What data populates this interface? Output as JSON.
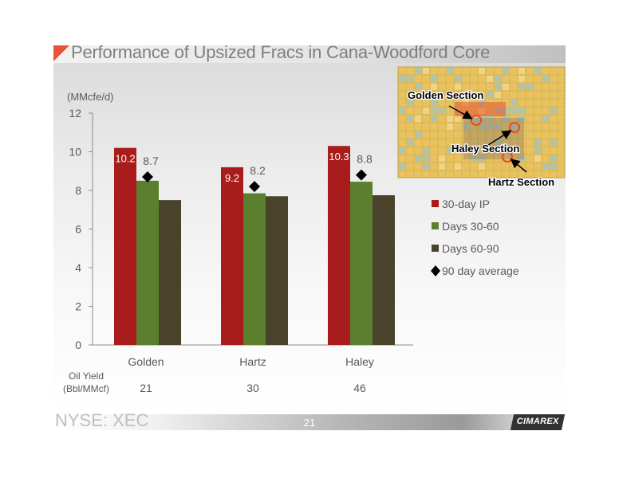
{
  "title": "Performance of Upsized Fracs in Cana-Woodford Core",
  "footer": {
    "ticker": "NYSE: XEC",
    "page_number": "21",
    "logo": "CIMAREX"
  },
  "chart_data": {
    "type": "bar",
    "unit_label": "(MMcfe/d)",
    "categories": [
      "Golden",
      "Hartz",
      "Haley"
    ],
    "ylim": [
      0,
      12
    ],
    "yticks": [
      0,
      2,
      4,
      6,
      8,
      10,
      12
    ],
    "grid": false,
    "legend_position": "right",
    "series": [
      {
        "name": "30-day IP",
        "values": [
          10.2,
          9.2,
          10.3
        ],
        "labels": [
          "10.2",
          "9.2",
          "10.3"
        ],
        "color": "#a81c1c"
      },
      {
        "name": "Days 30-60",
        "values": [
          8.5,
          7.85,
          8.45
        ],
        "labels": [
          "",
          "",
          ""
        ],
        "color": "#5b7f2e"
      },
      {
        "name": "Days 60-90",
        "values": [
          7.5,
          7.7,
          7.75
        ],
        "labels": [
          "",
          "",
          ""
        ],
        "color": "#4a432c"
      }
    ],
    "markers": {
      "name": "90 day average",
      "values": [
        8.7,
        8.2,
        8.8
      ],
      "labels": [
        "8.7",
        "8.2",
        "8.8"
      ],
      "color": "#000000"
    },
    "oil_yield": {
      "label_line1": "Oil Yield",
      "label_line2": "(Bbl/MMcf)",
      "values": [
        "21",
        "30",
        "46"
      ]
    }
  },
  "map_inset": {
    "labels": [
      "Golden Section",
      "Haley Section",
      "Hartz Section"
    ],
    "colors": {
      "base": "#e8c25e",
      "teal": "#a9c4b4",
      "red": "#e0482f",
      "hatch": "#8a7a66",
      "highlight": "#e84a2c"
    }
  }
}
